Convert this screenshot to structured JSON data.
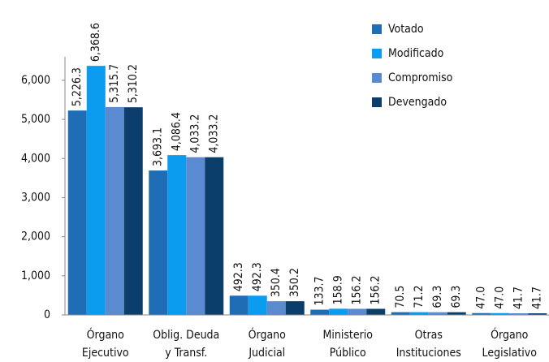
{
  "chart_data": {
    "type": "bar",
    "categories": [
      [
        "Órgano",
        "Ejecutivo"
      ],
      [
        "Oblig. Deuda",
        "y Transf."
      ],
      [
        "Órgano",
        "Judicial"
      ],
      [
        "Ministerio",
        "Público"
      ],
      [
        "Otras",
        "Instituciones"
      ],
      [
        "Órgano",
        "Legislativo"
      ]
    ],
    "series": [
      {
        "name": "Votado",
        "color": "#1f6db5",
        "values": [
          5226.3,
          3693.1,
          492.3,
          133.7,
          70.5,
          47.0
        ],
        "value_labels": [
          "5,226.3",
          "3,693.1",
          "492.3",
          "133.7",
          "70.5",
          "47.0"
        ]
      },
      {
        "name": "Modificado",
        "color": "#0b9cf0",
        "values": [
          6368.6,
          4086.4,
          492.3,
          158.9,
          71.2,
          47.0
        ],
        "value_labels": [
          "6,368.6",
          "4,086.4",
          "492.3",
          "158.9",
          "71.2",
          "47.0"
        ]
      },
      {
        "name": "Compromiso",
        "color": "#5a8ad0",
        "values": [
          5315.7,
          4033.2,
          350.4,
          156.2,
          69.3,
          41.7
        ],
        "value_labels": [
          "5,315.7",
          "4,033.2",
          "350.4",
          "156.2",
          "69.3",
          "41.7"
        ]
      },
      {
        "name": "Devengado",
        "color": "#0c3e6c",
        "values": [
          5310.2,
          4033.2,
          350.2,
          156.2,
          69.3,
          41.7
        ],
        "value_labels": [
          "5,310.2",
          "4,033.2",
          "350.2",
          "156.2",
          "69.3",
          "41.7"
        ]
      }
    ],
    "ylim": [
      0,
      6600
    ],
    "yticks": [
      0,
      {
        "value": 1000,
        "label": "1,000"
      },
      {
        "value": 2000,
        "label": "2,000"
      },
      {
        "value": 3000,
        "label": "3,000"
      },
      {
        "value": 4000,
        "label": "4,000"
      },
      {
        "value": 5000,
        "label": "5,000"
      },
      {
        "value": 6000,
        "label": "6,000"
      }
    ],
    "grid": false,
    "legend": "top-right"
  }
}
